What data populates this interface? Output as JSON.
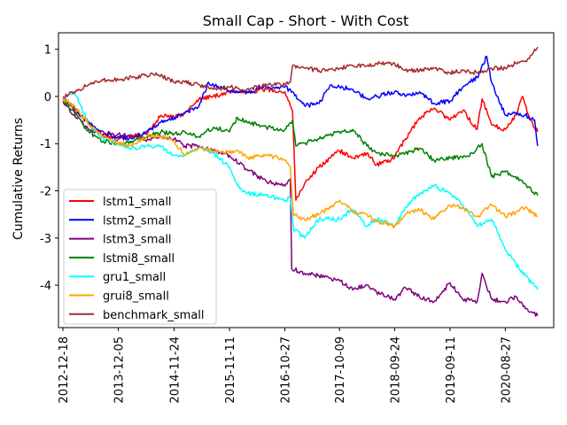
{
  "chart_data": {
    "type": "line",
    "title": "Small Cap - Short - With Cost",
    "xlabel": "",
    "ylabel": "Cumulative Returns",
    "x_ticks": [
      "2012-12-18",
      "2013-12-05",
      "2014-11-24",
      "2015-11-11",
      "2016-10-27",
      "2017-10-09",
      "2018-09-24",
      "2019-09-11",
      "2020-08-27"
    ],
    "x_range": [
      "2012-11-20",
      "2021-06-30"
    ],
    "ylim": [
      -4.9,
      1.35
    ],
    "y_ticks": [
      1,
      0,
      -1,
      -2,
      -3,
      -4
    ],
    "grid": false,
    "legend_position": "lower-left",
    "series": [
      {
        "name": "lstm1_small",
        "color": "#ff0000",
        "points": [
          [
            "2012-12-18",
            -0.05
          ],
          [
            "2013-03-01",
            -0.3
          ],
          [
            "2013-06-01",
            -0.55
          ],
          [
            "2013-09-01",
            -0.85
          ],
          [
            "2013-12-05",
            -0.9
          ],
          [
            "2014-03-01",
            -0.85
          ],
          [
            "2014-06-01",
            -0.8
          ],
          [
            "2014-09-01",
            -0.4
          ],
          [
            "2014-11-24",
            -0.45
          ],
          [
            "2015-02-01",
            -0.35
          ],
          [
            "2015-05-01",
            -0.05
          ],
          [
            "2015-08-01",
            0.0
          ],
          [
            "2015-11-11",
            0.1
          ],
          [
            "2016-03-01",
            0.1
          ],
          [
            "2016-07-01",
            0.15
          ],
          [
            "2016-10-27",
            0.1
          ],
          [
            "2016-12-15",
            -0.3
          ],
          [
            "2017-01-05",
            -2.2
          ],
          [
            "2017-03-01",
            -1.85
          ],
          [
            "2017-06-01",
            -1.5
          ],
          [
            "2017-10-09",
            -1.15
          ],
          [
            "2018-01-01",
            -1.3
          ],
          [
            "2018-04-01",
            -1.2
          ],
          [
            "2018-06-01",
            -1.45
          ],
          [
            "2018-09-24",
            -1.3
          ],
          [
            "2018-12-01",
            -0.9
          ],
          [
            "2019-03-01",
            -0.45
          ],
          [
            "2019-06-01",
            -0.25
          ],
          [
            "2019-09-11",
            -0.5
          ],
          [
            "2019-12-01",
            -0.3
          ],
          [
            "2020-03-01",
            -0.7
          ],
          [
            "2020-04-01",
            -0.05
          ],
          [
            "2020-06-01",
            -0.6
          ],
          [
            "2020-08-27",
            -0.7
          ],
          [
            "2020-11-01",
            -0.4
          ],
          [
            "2020-12-15",
            0.0
          ],
          [
            "2021-02-01",
            -0.5
          ],
          [
            "2021-03-20",
            -0.75
          ]
        ]
      },
      {
        "name": "lstm2_small",
        "color": "#0000ff",
        "points": [
          [
            "2012-12-18",
            -0.05
          ],
          [
            "2013-03-01",
            -0.25
          ],
          [
            "2013-06-01",
            -0.55
          ],
          [
            "2013-09-01",
            -0.8
          ],
          [
            "2013-12-05",
            -0.85
          ],
          [
            "2014-03-01",
            -0.9
          ],
          [
            "2014-06-01",
            -0.75
          ],
          [
            "2014-09-01",
            -0.55
          ],
          [
            "2014-11-24",
            -0.45
          ],
          [
            "2015-02-01",
            -0.35
          ],
          [
            "2015-05-01",
            -0.2
          ],
          [
            "2015-07-01",
            0.3
          ],
          [
            "2015-11-11",
            0.1
          ],
          [
            "2016-03-01",
            0.1
          ],
          [
            "2016-07-01",
            0.2
          ],
          [
            "2016-10-27",
            0.2
          ],
          [
            "2016-12-15",
            0.1
          ],
          [
            "2017-03-01",
            -0.2
          ],
          [
            "2017-06-01",
            -0.15
          ],
          [
            "2017-08-15",
            0.25
          ],
          [
            "2017-10-09",
            0.2
          ],
          [
            "2018-01-01",
            0.15
          ],
          [
            "2018-04-01",
            -0.05
          ],
          [
            "2018-06-01",
            0.0
          ],
          [
            "2018-09-24",
            0.1
          ],
          [
            "2018-12-01",
            0.0
          ],
          [
            "2019-03-01",
            0.1
          ],
          [
            "2019-06-01",
            -0.15
          ],
          [
            "2019-09-11",
            -0.1
          ],
          [
            "2019-12-01",
            0.2
          ],
          [
            "2020-03-01",
            0.4
          ],
          [
            "2020-05-01",
            0.85
          ],
          [
            "2020-06-01",
            0.3
          ],
          [
            "2020-08-27",
            -0.4
          ],
          [
            "2020-11-01",
            -0.35
          ],
          [
            "2021-01-01",
            -0.4
          ],
          [
            "2021-03-01",
            -0.5
          ],
          [
            "2021-03-20",
            -1.05
          ]
        ]
      },
      {
        "name": "lstm3_small",
        "color": "#800080",
        "points": [
          [
            "2012-12-18",
            -0.1
          ],
          [
            "2013-03-01",
            -0.4
          ],
          [
            "2013-06-01",
            -0.7
          ],
          [
            "2013-09-01",
            -0.75
          ],
          [
            "2013-12-05",
            -0.8
          ],
          [
            "2014-03-01",
            -0.85
          ],
          [
            "2014-06-01",
            -0.95
          ],
          [
            "2014-09-01",
            -0.85
          ],
          [
            "2014-11-24",
            -0.9
          ],
          [
            "2015-02-01",
            -1.05
          ],
          [
            "2015-05-01",
            -1.05
          ],
          [
            "2015-08-01",
            -1.15
          ],
          [
            "2015-11-11",
            -1.25
          ],
          [
            "2016-03-01",
            -1.55
          ],
          [
            "2016-07-01",
            -1.8
          ],
          [
            "2016-10-27",
            -1.9
          ],
          [
            "2016-12-01",
            -1.75
          ],
          [
            "2016-12-10",
            -3.65
          ],
          [
            "2017-03-01",
            -3.75
          ],
          [
            "2017-06-01",
            -3.8
          ],
          [
            "2017-10-09",
            -3.9
          ],
          [
            "2018-01-01",
            -4.1
          ],
          [
            "2018-04-01",
            -4.0
          ],
          [
            "2018-06-01",
            -4.15
          ],
          [
            "2018-09-24",
            -4.3
          ],
          [
            "2018-12-01",
            -4.05
          ],
          [
            "2019-03-01",
            -4.25
          ],
          [
            "2019-06-01",
            -4.35
          ],
          [
            "2019-09-11",
            -3.95
          ],
          [
            "2019-12-01",
            -4.3
          ],
          [
            "2020-03-01",
            -4.35
          ],
          [
            "2020-04-01",
            -3.75
          ],
          [
            "2020-06-01",
            -4.3
          ],
          [
            "2020-08-27",
            -4.35
          ],
          [
            "2020-11-01",
            -4.25
          ],
          [
            "2021-01-01",
            -4.5
          ],
          [
            "2021-03-20",
            -4.65
          ]
        ]
      },
      {
        "name": "lstmi8_small",
        "color": "#008000",
        "points": [
          [
            "2012-12-18",
            -0.05
          ],
          [
            "2013-03-01",
            -0.35
          ],
          [
            "2013-06-01",
            -0.75
          ],
          [
            "2013-09-01",
            -0.95
          ],
          [
            "2013-12-05",
            -1.0
          ],
          [
            "2014-03-01",
            -0.95
          ],
          [
            "2014-06-01",
            -0.85
          ],
          [
            "2014-09-01",
            -0.75
          ],
          [
            "2014-11-24",
            -0.8
          ],
          [
            "2015-02-01",
            -0.75
          ],
          [
            "2015-05-01",
            -0.85
          ],
          [
            "2015-08-01",
            -0.65
          ],
          [
            "2015-11-11",
            -0.75
          ],
          [
            "2016-01-01",
            -0.45
          ],
          [
            "2016-03-01",
            -0.55
          ],
          [
            "2016-07-01",
            -0.65
          ],
          [
            "2016-10-27",
            -0.7
          ],
          [
            "2016-12-15",
            -0.5
          ],
          [
            "2017-01-05",
            -1.05
          ],
          [
            "2017-06-01",
            -0.9
          ],
          [
            "2017-10-09",
            -0.75
          ],
          [
            "2018-01-01",
            -0.7
          ],
          [
            "2018-04-01",
            -1.05
          ],
          [
            "2018-06-01",
            -1.2
          ],
          [
            "2018-09-24",
            -1.25
          ],
          [
            "2018-12-01",
            -1.2
          ],
          [
            "2019-03-01",
            -1.1
          ],
          [
            "2019-06-01",
            -1.35
          ],
          [
            "2019-09-11",
            -1.3
          ],
          [
            "2019-12-01",
            -1.3
          ],
          [
            "2020-02-01",
            -1.2
          ],
          [
            "2020-04-01",
            -1.0
          ],
          [
            "2020-06-01",
            -1.7
          ],
          [
            "2020-08-27",
            -1.6
          ],
          [
            "2020-11-01",
            -1.7
          ],
          [
            "2021-01-01",
            -1.85
          ],
          [
            "2021-03-20",
            -2.1
          ]
        ]
      },
      {
        "name": "gru1_small",
        "color": "#00ffff",
        "points": [
          [
            "2012-12-18",
            -0.05
          ],
          [
            "2013-03-01",
            0.1
          ],
          [
            "2013-06-01",
            -0.6
          ],
          [
            "2013-09-01",
            -0.9
          ],
          [
            "2013-12-05",
            -1.0
          ],
          [
            "2014-03-01",
            -1.1
          ],
          [
            "2014-06-01",
            -1.05
          ],
          [
            "2014-09-01",
            -1.05
          ],
          [
            "2014-11-24",
            -1.25
          ],
          [
            "2015-02-01",
            -1.25
          ],
          [
            "2015-05-01",
            -1.1
          ],
          [
            "2015-08-01",
            -1.2
          ],
          [
            "2015-11-11",
            -1.5
          ],
          [
            "2016-01-01",
            -1.9
          ],
          [
            "2016-03-01",
            -2.05
          ],
          [
            "2016-07-01",
            -2.1
          ],
          [
            "2016-10-27",
            -2.2
          ],
          [
            "2016-12-01",
            -2.15
          ],
          [
            "2016-12-20",
            -2.8
          ],
          [
            "2017-03-01",
            -3.0
          ],
          [
            "2017-06-01",
            -2.6
          ],
          [
            "2017-10-09",
            -2.6
          ],
          [
            "2018-01-01",
            -2.4
          ],
          [
            "2018-04-01",
            -2.75
          ],
          [
            "2018-06-01",
            -2.6
          ],
          [
            "2018-09-24",
            -2.75
          ],
          [
            "2018-12-01",
            -2.35
          ],
          [
            "2019-03-01",
            -2.05
          ],
          [
            "2019-06-01",
            -1.9
          ],
          [
            "2019-09-11",
            -2.05
          ],
          [
            "2019-12-01",
            -2.3
          ],
          [
            "2020-03-01",
            -2.75
          ],
          [
            "2020-06-01",
            -2.6
          ],
          [
            "2020-08-27",
            -3.25
          ],
          [
            "2020-11-01",
            -3.55
          ],
          [
            "2021-01-01",
            -3.8
          ],
          [
            "2021-03-20",
            -4.1
          ]
        ]
      },
      {
        "name": "grui8_small",
        "color": "#ffa500",
        "points": [
          [
            "2012-12-18",
            -0.05
          ],
          [
            "2013-03-01",
            -0.2
          ],
          [
            "2013-06-01",
            -0.6
          ],
          [
            "2013-09-01",
            -0.85
          ],
          [
            "2013-12-05",
            -1.0
          ],
          [
            "2014-03-01",
            -1.05
          ],
          [
            "2014-06-01",
            -0.85
          ],
          [
            "2014-09-01",
            -0.85
          ],
          [
            "2014-11-24",
            -0.95
          ],
          [
            "2015-02-01",
            -1.25
          ],
          [
            "2015-05-01",
            -1.1
          ],
          [
            "2015-08-01",
            -1.15
          ],
          [
            "2015-11-11",
            -1.2
          ],
          [
            "2016-01-01",
            -1.15
          ],
          [
            "2016-03-01",
            -1.3
          ],
          [
            "2016-07-01",
            -1.25
          ],
          [
            "2016-10-27",
            -1.35
          ],
          [
            "2016-12-01",
            -1.5
          ],
          [
            "2016-12-20",
            -2.5
          ],
          [
            "2017-03-01",
            -2.6
          ],
          [
            "2017-06-01",
            -2.5
          ],
          [
            "2017-10-09",
            -2.2
          ],
          [
            "2018-01-01",
            -2.45
          ],
          [
            "2018-04-01",
            -2.5
          ],
          [
            "2018-06-01",
            -2.65
          ],
          [
            "2018-09-24",
            -2.75
          ],
          [
            "2018-12-01",
            -2.5
          ],
          [
            "2019-03-01",
            -2.4
          ],
          [
            "2019-06-01",
            -2.6
          ],
          [
            "2019-09-11",
            -2.3
          ],
          [
            "2019-12-01",
            -2.35
          ],
          [
            "2020-03-01",
            -2.55
          ],
          [
            "2020-06-01",
            -2.3
          ],
          [
            "2020-08-27",
            -2.55
          ],
          [
            "2020-11-01",
            -2.45
          ],
          [
            "2021-01-01",
            -2.35
          ],
          [
            "2021-03-20",
            -2.55
          ]
        ]
      },
      {
        "name": "benchmark_small",
        "color": "#a52a2a",
        "points": [
          [
            "2012-12-18",
            0.0
          ],
          [
            "2013-03-01",
            0.1
          ],
          [
            "2013-06-01",
            0.25
          ],
          [
            "2013-09-01",
            0.35
          ],
          [
            "2013-12-05",
            0.35
          ],
          [
            "2014-03-01",
            0.4
          ],
          [
            "2014-06-01",
            0.45
          ],
          [
            "2014-08-01",
            0.5
          ],
          [
            "2014-11-24",
            0.3
          ],
          [
            "2015-02-01",
            0.3
          ],
          [
            "2015-05-01",
            0.25
          ],
          [
            "2015-08-01",
            0.15
          ],
          [
            "2015-11-11",
            0.2
          ],
          [
            "2016-03-01",
            0.15
          ],
          [
            "2016-07-01",
            0.25
          ],
          [
            "2016-10-27",
            0.25
          ],
          [
            "2016-12-01",
            0.3
          ],
          [
            "2016-12-15",
            0.65
          ],
          [
            "2017-03-01",
            0.6
          ],
          [
            "2017-06-01",
            0.55
          ],
          [
            "2017-10-09",
            0.6
          ],
          [
            "2018-01-01",
            0.65
          ],
          [
            "2018-04-01",
            0.65
          ],
          [
            "2018-06-01",
            0.7
          ],
          [
            "2018-09-24",
            0.7
          ],
          [
            "2018-12-01",
            0.55
          ],
          [
            "2019-03-01",
            0.55
          ],
          [
            "2019-06-01",
            0.6
          ],
          [
            "2019-09-11",
            0.5
          ],
          [
            "2019-12-01",
            0.55
          ],
          [
            "2020-03-01",
            0.5
          ],
          [
            "2020-06-01",
            0.6
          ],
          [
            "2020-08-27",
            0.6
          ],
          [
            "2020-11-01",
            0.7
          ],
          [
            "2021-01-01",
            0.75
          ],
          [
            "2021-03-20",
            1.05
          ]
        ]
      }
    ]
  }
}
